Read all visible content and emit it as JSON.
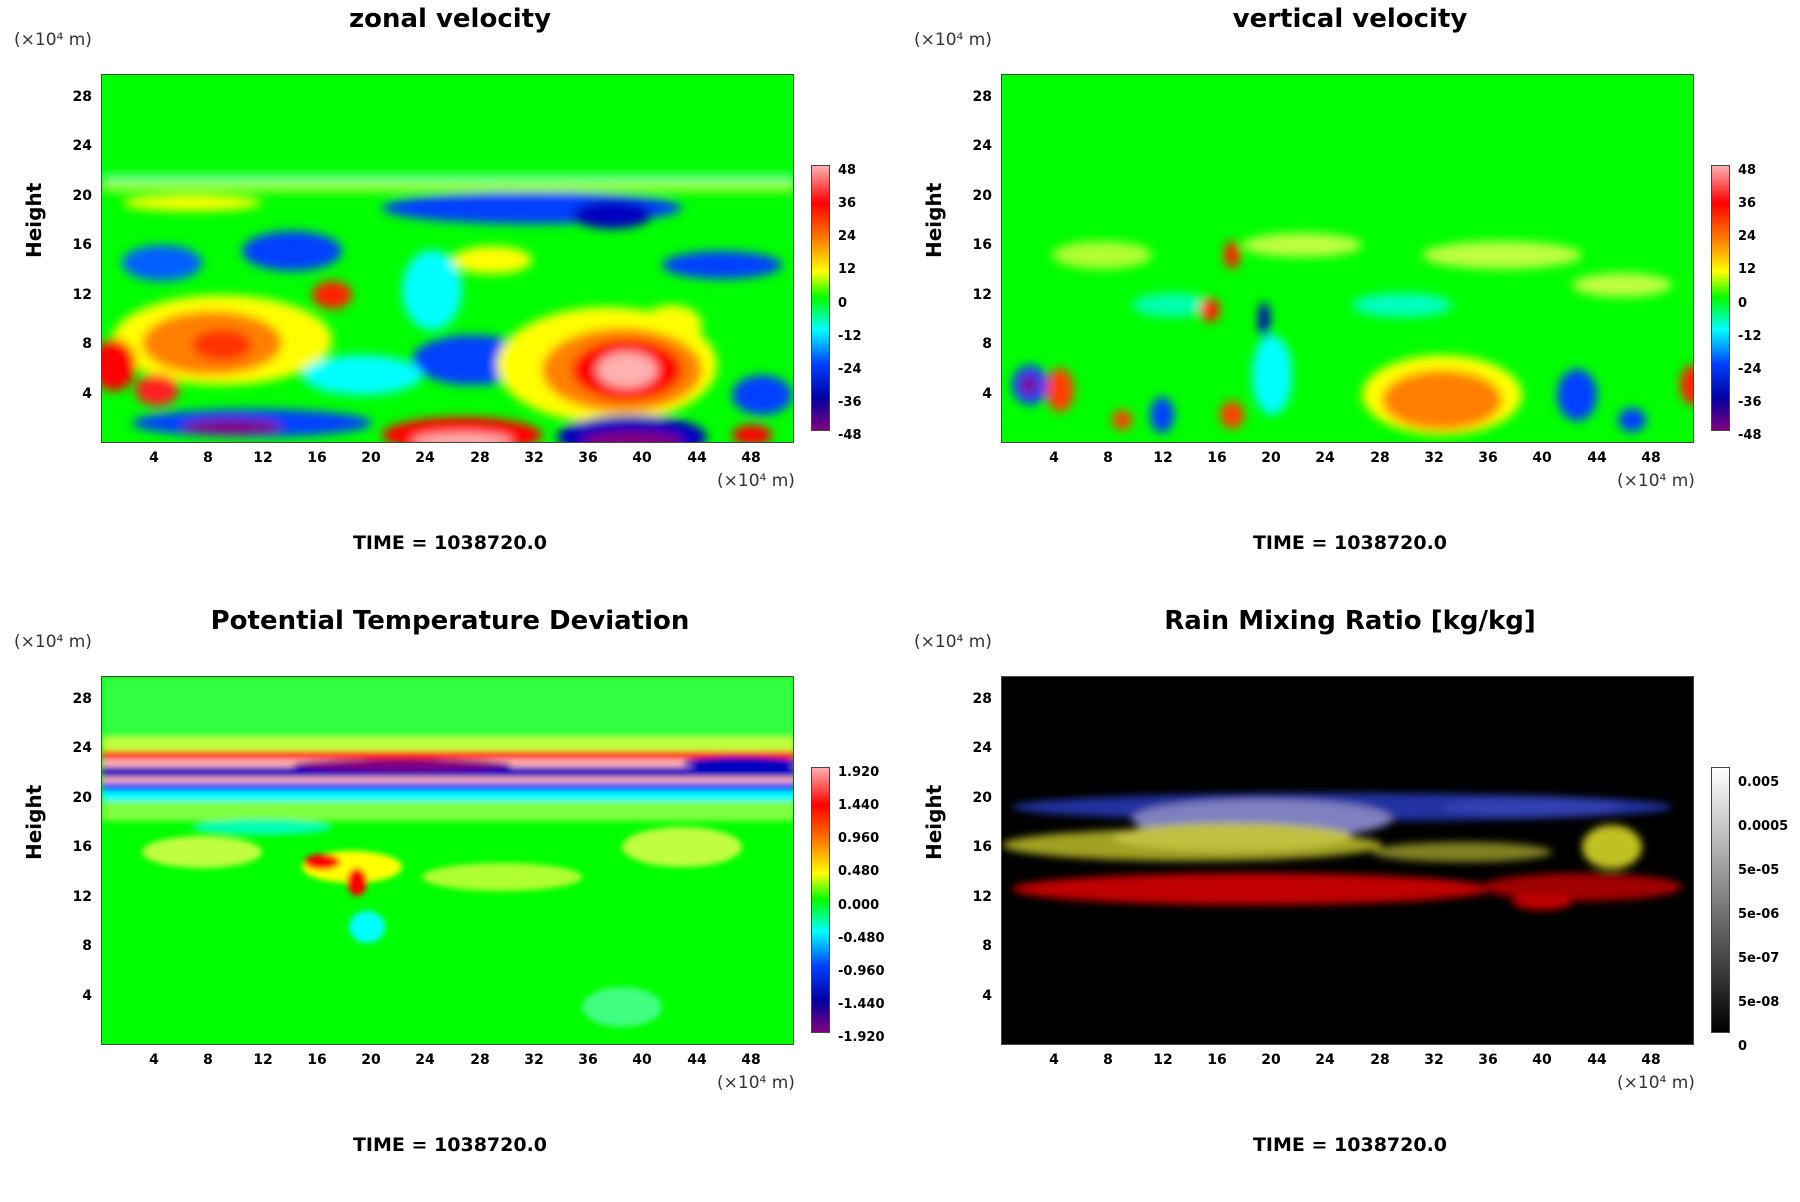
{
  "chart_data": [
    {
      "type": "heatmap",
      "title": "zonal velocity",
      "ylabel": "Height",
      "y_unit": "(×10⁴ m)",
      "x_unit": "(×10⁴ m)",
      "x_ticks": [
        "4",
        "8",
        "12",
        "16",
        "20",
        "24",
        "28",
        "32",
        "36",
        "40",
        "44",
        "48"
      ],
      "y_ticks": [
        "4",
        "8",
        "12",
        "16",
        "20",
        "24",
        "28"
      ],
      "xlim": [
        0,
        51
      ],
      "ylim": [
        0,
        30
      ],
      "colorbar_labels": [
        "48",
        "36",
        "24",
        "12",
        "0",
        "-12",
        "-24",
        "-36",
        "-48"
      ],
      "colorbar_range": [
        -48,
        48
      ],
      "colormap": "rainbow",
      "time_label": "TIME = 1038720.0"
    },
    {
      "type": "heatmap",
      "title": "vertical velocity",
      "ylabel": "Height",
      "y_unit": "(×10⁴ m)",
      "x_unit": "(×10⁴ m)",
      "x_ticks": [
        "4",
        "8",
        "12",
        "16",
        "20",
        "24",
        "28",
        "32",
        "36",
        "40",
        "44",
        "48"
      ],
      "y_ticks": [
        "4",
        "8",
        "12",
        "16",
        "20",
        "24",
        "28"
      ],
      "xlim": [
        0,
        51
      ],
      "ylim": [
        0,
        30
      ],
      "colorbar_labels": [
        "48",
        "36",
        "24",
        "12",
        "0",
        "-12",
        "-24",
        "-36",
        "-48"
      ],
      "colorbar_range": [
        -48,
        48
      ],
      "colormap": "rainbow",
      "time_label": "TIME = 1038720.0"
    },
    {
      "type": "heatmap",
      "title": "Potential Temperature Deviation",
      "ylabel": "Height",
      "y_unit": "(×10⁴ m)",
      "x_unit": "(×10⁴ m)",
      "x_ticks": [
        "4",
        "8",
        "12",
        "16",
        "20",
        "24",
        "28",
        "32",
        "36",
        "40",
        "44",
        "48"
      ],
      "y_ticks": [
        "4",
        "8",
        "12",
        "16",
        "20",
        "24",
        "28"
      ],
      "xlim": [
        0,
        51
      ],
      "ylim": [
        0,
        30
      ],
      "colorbar_labels": [
        "1.920",
        "1.440",
        "0.960",
        "0.480",
        "0.000",
        "-0.480",
        "-0.960",
        "-1.440",
        "-1.920"
      ],
      "colorbar_range": [
        -1.92,
        1.92
      ],
      "colormap": "rainbow",
      "time_label": "TIME = 1038720.0"
    },
    {
      "type": "heatmap",
      "title": "Rain Mixing Ratio [kg/kg]",
      "ylabel": "Height",
      "y_unit": "(×10⁴ m)",
      "x_unit": "(×10⁴ m)",
      "x_ticks": [
        "4",
        "8",
        "12",
        "16",
        "20",
        "24",
        "28",
        "32",
        "36",
        "40",
        "44",
        "48"
      ],
      "y_ticks": [
        "4",
        "8",
        "12",
        "16",
        "20",
        "24",
        "28"
      ],
      "xlim": [
        0,
        51
      ],
      "ylim": [
        0,
        30
      ],
      "colorbar_labels": [
        "0.005",
        "0.0005",
        "5e-05",
        "5e-06",
        "5e-07",
        "5e-08",
        "0"
      ],
      "colormap": "grayscale-log",
      "time_label": "TIME = 1038720.0"
    }
  ],
  "colors": {
    "background_green": "#00ff00",
    "rain_background": "#000000",
    "rainbow": [
      "#ffb0b0",
      "#ff0000",
      "#ff8000",
      "#ffff00",
      "#00ff00",
      "#00ffff",
      "#0040ff",
      "#0000a0",
      "#800080"
    ]
  }
}
